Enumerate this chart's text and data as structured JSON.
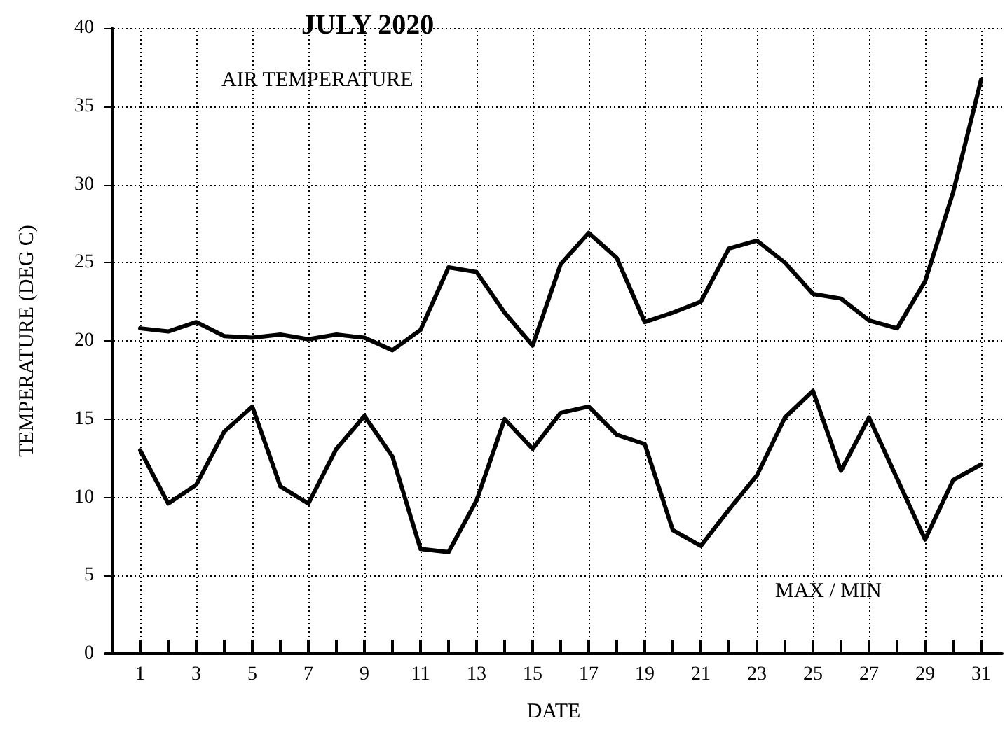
{
  "chart_data": {
    "type": "line",
    "title": "JULY 2020",
    "subtitle": "AIR TEMPERATURE",
    "xlabel": "DATE",
    "ylabel": "TEMPERATURE (DEG C)",
    "annotations": [
      "MAX / MIN"
    ],
    "x": [
      1,
      2,
      3,
      4,
      5,
      6,
      7,
      8,
      9,
      10,
      11,
      12,
      13,
      14,
      15,
      16,
      17,
      18,
      19,
      20,
      21,
      22,
      23,
      24,
      25,
      26,
      27,
      28,
      29,
      30,
      31
    ],
    "series": [
      {
        "color": "#000000",
        "values": [
          20.8,
          20.6,
          21.2,
          20.3,
          20.2,
          20.4,
          20.1,
          20.4,
          20.2,
          19.4,
          20.7,
          24.7,
          24.4,
          21.8,
          19.7,
          24.9,
          26.9,
          25.3,
          21.2,
          21.8,
          22.5,
          25.9,
          26.4,
          25.0,
          23.0,
          22.7,
          21.3,
          20.8,
          23.8,
          29.5,
          36.7
        ]
      },
      {
        "color": "#000000",
        "values": [
          13.0,
          9.6,
          10.8,
          14.2,
          15.8,
          10.7,
          9.6,
          13.1,
          15.2,
          12.6,
          6.7,
          6.5,
          9.8,
          15.0,
          13.1,
          15.4,
          15.8,
          14.0,
          13.4,
          7.9,
          6.9,
          9.2,
          11.4,
          15.1,
          16.8,
          11.7,
          15.1,
          11.2,
          7.3,
          11.1,
          12.1
        ]
      }
    ],
    "xlim": [
      -0.25,
      31.75
    ],
    "xticks": [
      1,
      {
        "value": 2,
        "label": null
      },
      3,
      {
        "value": 4,
        "label": null
      },
      5,
      {
        "value": 6,
        "label": null
      },
      7,
      {
        "value": 8,
        "label": null
      },
      9,
      {
        "value": 10,
        "label": null
      },
      11,
      {
        "value": 12,
        "label": null
      },
      13,
      {
        "value": 14,
        "label": null
      },
      15,
      {
        "value": 16,
        "label": null
      },
      17,
      {
        "value": 18,
        "label": null
      },
      19,
      {
        "value": 20,
        "label": null
      },
      21,
      {
        "value": 22,
        "label": null
      },
      23,
      {
        "value": 24,
        "label": null
      },
      25,
      {
        "value": 26,
        "label": null
      },
      27,
      {
        "value": 28,
        "label": null
      },
      29,
      {
        "value": 30,
        "label": null
      },
      31
    ],
    "ylim": [
      0,
      40
    ],
    "yticks": [
      0,
      5,
      10,
      15,
      20,
      25,
      30,
      35,
      40
    ],
    "grid": true,
    "marker": "none",
    "line_style": "solid"
  }
}
